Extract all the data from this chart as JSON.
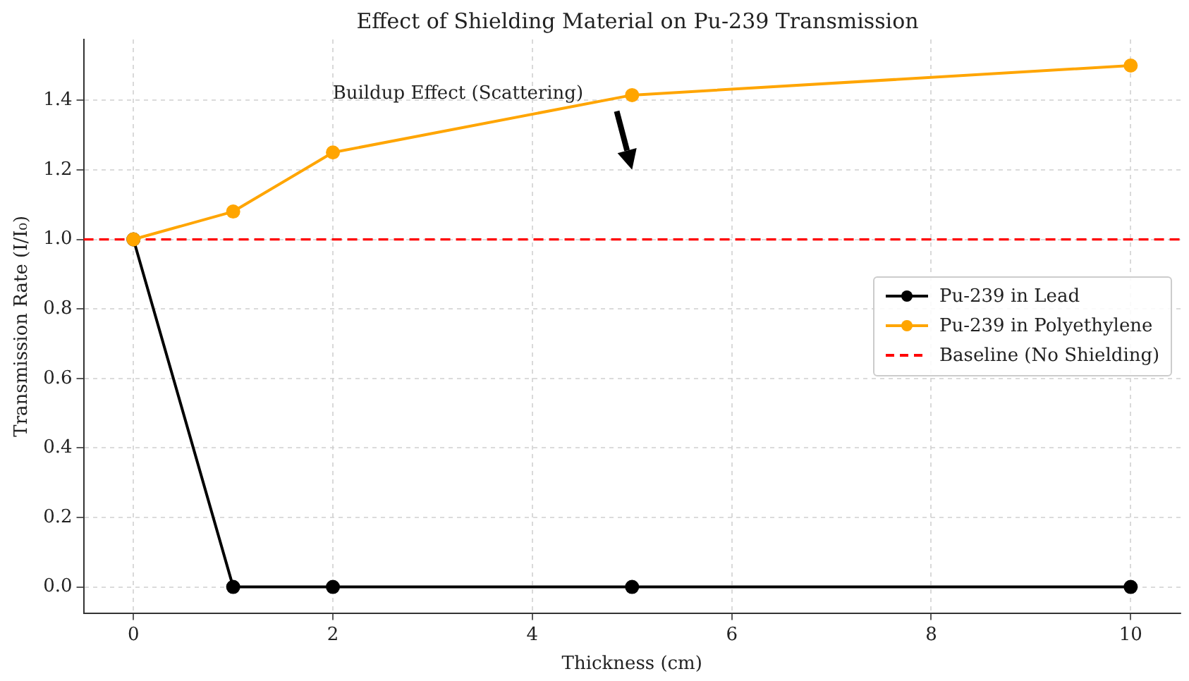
{
  "chart_data": {
    "type": "line",
    "title": "Effect of Shielding Material on Pu-239 Transmission",
    "xlabel": "Thickness (cm)",
    "ylabel": "Transmission Rate (I/I₀)",
    "x": [
      0,
      1,
      2,
      5,
      10
    ],
    "series": [
      {
        "name": "Pu-239 in Lead",
        "color": "#000000",
        "values": [
          1.0,
          0.0,
          0.0,
          0.0,
          0.0
        ]
      },
      {
        "name": "Pu-239 in Polyethylene",
        "color": "#ffa500",
        "values": [
          1.0,
          1.08,
          1.25,
          1.415,
          1.5
        ]
      }
    ],
    "ref_lines": [
      {
        "axis": "y",
        "value": 1.0,
        "label": "Baseline (No Shielding)",
        "color": "#ff0000",
        "line_style": "dashed"
      }
    ],
    "annotations": [
      "Buildup Effect (Scattering)"
    ],
    "xlim": [
      -0.5,
      10.5
    ],
    "xticks": [
      0,
      2,
      4,
      6,
      8,
      10
    ],
    "ylim": [
      -0.075,
      1.575
    ],
    "yticks": [
      {
        "value": 0,
        "label": "0.0"
      },
      {
        "value": 0.2,
        "label": "0.2"
      },
      {
        "value": 0.4,
        "label": "0.4"
      },
      {
        "value": 0.6,
        "label": "0.6"
      },
      {
        "value": 0.8,
        "label": "0.8"
      },
      {
        "value": 1,
        "label": "1.0"
      },
      {
        "value": 1.2,
        "label": "1.2"
      },
      {
        "value": 1.4,
        "label": "1.4"
      }
    ],
    "grid": true,
    "legend": "right",
    "marker": "circle",
    "line_style": "solid"
  }
}
